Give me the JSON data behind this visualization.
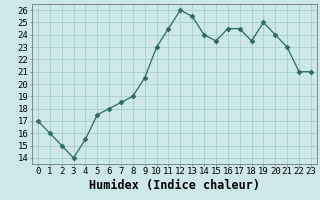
{
  "x": [
    0,
    1,
    2,
    3,
    4,
    5,
    6,
    7,
    8,
    9,
    10,
    11,
    12,
    13,
    14,
    15,
    16,
    17,
    18,
    19,
    20,
    21,
    22,
    23
  ],
  "y": [
    17,
    16,
    15,
    14,
    15.5,
    17.5,
    18,
    18.5,
    19,
    20.5,
    23,
    24.5,
    26,
    25.5,
    24,
    23.5,
    24.5,
    24.5,
    23.5,
    25,
    24,
    23,
    21,
    21
  ],
  "xlabel": "Humidex (Indice chaleur)",
  "ylim": [
    13.5,
    26.5
  ],
  "xlim": [
    -0.5,
    23.5
  ],
  "yticks": [
    14,
    15,
    16,
    17,
    18,
    19,
    20,
    21,
    22,
    23,
    24,
    25,
    26
  ],
  "xticks": [
    0,
    1,
    2,
    3,
    4,
    5,
    6,
    7,
    8,
    9,
    10,
    11,
    12,
    13,
    14,
    15,
    16,
    17,
    18,
    19,
    20,
    21,
    22,
    23
  ],
  "line_color": "#2e6b5e",
  "marker_size": 2.5,
  "bg_color": "#cce8e8",
  "grid_color": "#aacccc",
  "tick_label_fontsize": 6.5,
  "xlabel_fontsize": 8.5
}
